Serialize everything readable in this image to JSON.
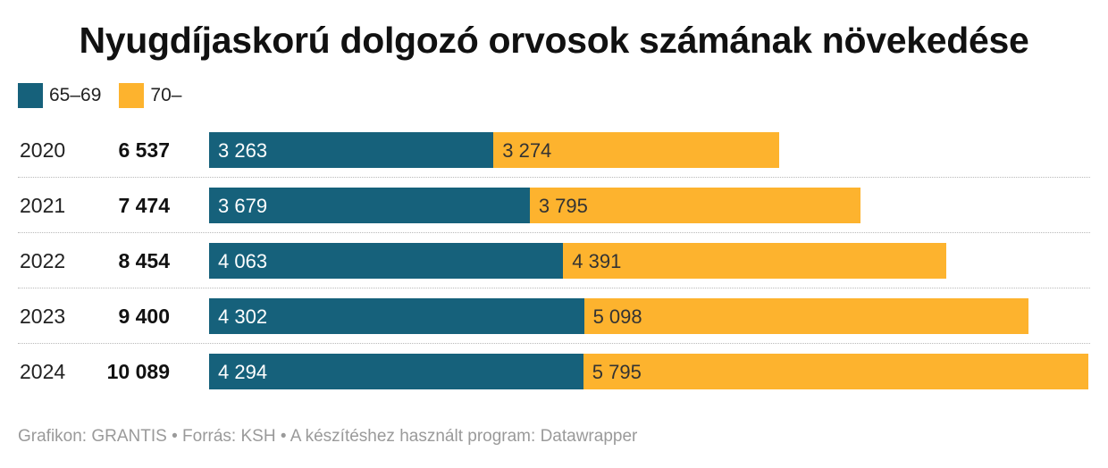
{
  "chart_data": {
    "type": "bar",
    "orientation": "horizontal",
    "stacked": true,
    "title": "Nyugdíjaskorú dolgozó orvosok számának növekedése",
    "categories": [
      "2020",
      "2021",
      "2022",
      "2023",
      "2024"
    ],
    "totals": [
      "6 537",
      "7 474",
      "8 454",
      "9 400",
      "10 089"
    ],
    "series": [
      {
        "name": "65–69",
        "color": "#16617b",
        "values": [
          3263,
          3679,
          4063,
          4302,
          4294
        ],
        "labels": [
          "3 263",
          "3 679",
          "4 063",
          "4 302",
          "4 294"
        ]
      },
      {
        "name": "70–",
        "color": "#fdb32e",
        "values": [
          3274,
          3795,
          4391,
          5098,
          5795
        ],
        "labels": [
          "3 274",
          "3 795",
          "4 391",
          "5 098",
          "5 795"
        ]
      }
    ],
    "xlim": [
      0,
      10089
    ],
    "legend_position": "top-left",
    "grid": false
  },
  "footer": "Grafikon: GRANTIS • Forrás: KSH • A készítéshez használt program: Datawrapper"
}
